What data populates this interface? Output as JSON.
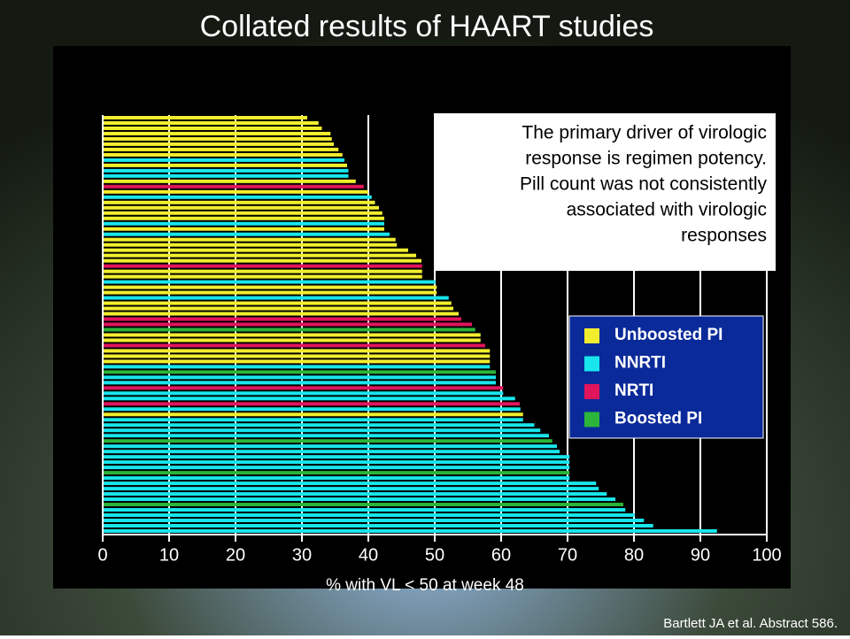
{
  "chart_data": {
    "type": "hbar",
    "title": "Collated results of HAART studies",
    "xlabel": "%  with VL < 50 at week 48",
    "annotation": [
      "The primary driver of virologic",
      "response is regimen potency.",
      "Pill count was not consistently",
      "associated with virologic",
      "responses"
    ],
    "source": "Bartlett JA et al. Abstract 586.",
    "xlim": [
      0,
      100
    ],
    "xticks": [
      0,
      10,
      20,
      30,
      40,
      50,
      60,
      70,
      80,
      90,
      100
    ],
    "grid": true,
    "legend": [
      {
        "name": "Unboosted PI",
        "color": "#f2ee2e"
      },
      {
        "name": "NNRTI",
        "color": "#19e6ec"
      },
      {
        "name": "NRTI",
        "color": "#e0155c"
      },
      {
        "name": "Boosted PI",
        "color": "#2bb53a"
      }
    ],
    "values": [
      30.8,
      32.5,
      33,
      34.3,
      34.5,
      34.8,
      35.5,
      36.1,
      36.4,
      36.8,
      37,
      37,
      38.1,
      39.3,
      40,
      40.5,
      41,
      41.6,
      42.1,
      42.4,
      42.4,
      42.4,
      43.2,
      44.1,
      44.3,
      46,
      47.2,
      48,
      48.1,
      48.1,
      48.1,
      50.1,
      50.3,
      50.3,
      52.1,
      52.5,
      52.8,
      53.6,
      54,
      55.6,
      56.1,
      56.9,
      56.9,
      57.6,
      58.3,
      58.3,
      58.3,
      58.3,
      59.2,
      59.2,
      59.2,
      60.3,
      60.3,
      62.1,
      62.8,
      62.9,
      63.3,
      63.3,
      65,
      65.9,
      67.2,
      67.7,
      68.4,
      68.8,
      70.3,
      70.3,
      70.3,
      70.3,
      70.3,
      74.3,
      74.7,
      75.9,
      77.2,
      78.4,
      78.7,
      80.1,
      81.5,
      82.9,
      92.5
    ],
    "colors": [
      "#f2ee2e",
      "#f2ee2e",
      "#f2ee2e",
      "#f2ee2e",
      "#f2ee2e",
      "#f2ee2e",
      "#f2ee2e",
      "#f2ee2e",
      "#19e6ec",
      "#f2ee2e",
      "#19e6ec",
      "#19e6ec",
      "#f2ee2e",
      "#e0155c",
      "#f2ee2e",
      "#19e6ec",
      "#f2ee2e",
      "#f2ee2e",
      "#f2ee2e",
      "#f2ee2e",
      "#19e6ec",
      "#f2ee2e",
      "#19e6ec",
      "#f2ee2e",
      "#f2ee2e",
      "#f2ee2e",
      "#f2ee2e",
      "#f2ee2e",
      "#e0155c",
      "#f2ee2e",
      "#f2ee2e",
      "#19e6ec",
      "#f2ee2e",
      "#f2ee2e",
      "#19e6ec",
      "#f2ee2e",
      "#f2ee2e",
      "#f2ee2e",
      "#e0155c",
      "#e0155c",
      "#2bb53a",
      "#f2ee2e",
      "#f2ee2e",
      "#e0155c",
      "#f2ee2e",
      "#f2ee2e",
      "#f2ee2e",
      "#19e6ec",
      "#2bb53a",
      "#19e6ec",
      "#19e6ec",
      "#e0155c",
      "#19e6ec",
      "#19e6ec",
      "#e0155c",
      "#19e6ec",
      "#f2ee2e",
      "#19e6ec",
      "#19e6ec",
      "#19e6ec",
      "#19e6ec",
      "#2bb53a",
      "#19e6ec",
      "#19e6ec",
      "#19e6ec",
      "#19e6ec",
      "#19e6ec",
      "#2bb53a",
      "#19e6ec",
      "#19e6ec",
      "#19e6ec",
      "#19e6ec",
      "#19e6ec",
      "#2bb53a",
      "#19e6ec",
      "#19e6ec",
      "#19e6ec",
      "#19e6ec",
      "#19e6ec"
    ]
  }
}
